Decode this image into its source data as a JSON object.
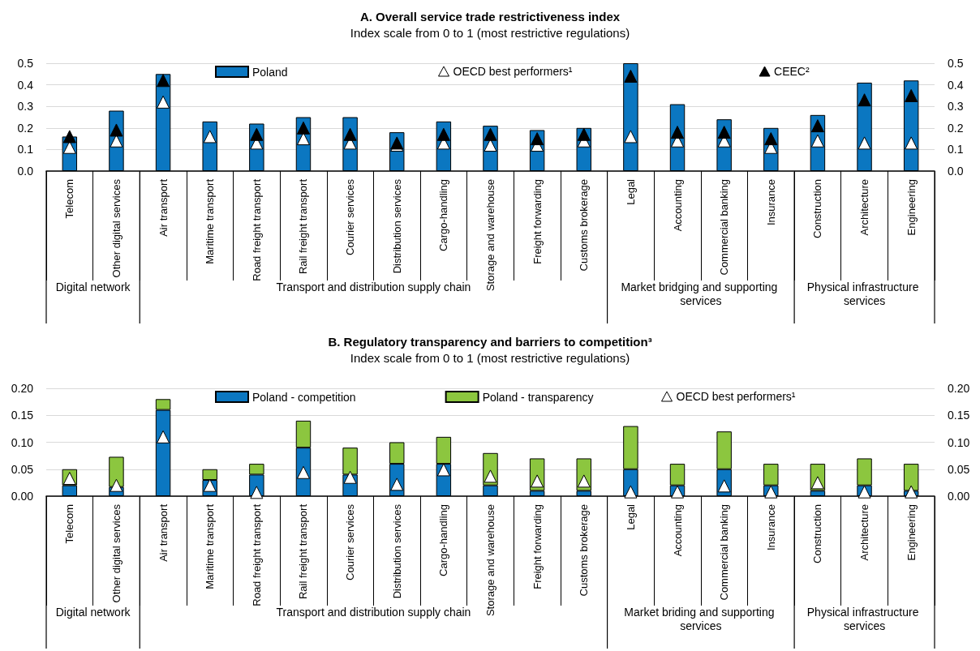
{
  "chart_data": [
    {
      "type": "bar",
      "title": "A. Overall service trade restrictiveness index",
      "subtitle": "Index scale from 0 to 1 (most restrictive regulations)",
      "categories": [
        "Telecom",
        "Other digital services",
        "Air transport",
        "Maritime transport",
        "Road freight transport",
        "Rail freight transport",
        "Courier services",
        "Distribution services",
        "Cargo-handling",
        "Storage and warehouse",
        "Freight forwarding",
        "Customs brokerage",
        "Legal",
        "Accounting",
        "Commercial banking",
        "Insurance",
        "Construction",
        "Architecture",
        "Engineering"
      ],
      "series": [
        {
          "name": "Poland",
          "type": "bar",
          "color": "#0b77c1",
          "values": [
            0.16,
            0.28,
            0.45,
            0.23,
            0.22,
            0.25,
            0.25,
            0.18,
            0.23,
            0.21,
            0.19,
            0.2,
            0.5,
            0.31,
            0.24,
            0.2,
            0.26,
            0.41,
            0.42
          ]
        },
        {
          "name": "OECD best performers¹",
          "type": "scatter",
          "marker": "triangle",
          "color": "#ffffff",
          "x": [
            "Telecom",
            "Other digital services",
            "Air transport",
            "Maritime transport",
            "Road freight transport",
            "Rail freight transport",
            "Courier services",
            "Distribution services",
            "Cargo-handling",
            "Storage and warehouse",
            "Freight forwarding",
            "Customs brokerage",
            "Legal",
            "Accounting",
            "Commercial banking",
            "Insurance",
            "Construction",
            "Architecture",
            "Engineering"
          ],
          "values": [
            0.11,
            0.14,
            0.32,
            0.16,
            0.13,
            0.15,
            0.13,
            0.12,
            0.13,
            0.12,
            0.12,
            0.14,
            0.16,
            0.14,
            0.14,
            0.11,
            0.14,
            0.13,
            0.13
          ]
        },
        {
          "name": "CEEC²",
          "type": "scatter",
          "marker": "triangle",
          "color": "#000000",
          "x": [
            "Telecom",
            "Other digital services",
            "Air transport",
            "Maritime transport",
            "Road freight transport",
            "Rail freight transport",
            "Courier services",
            "Distribution services",
            "Cargo-handling",
            "Storage and warehouse",
            "Freight forwarding",
            "Customs brokerage",
            "Legal",
            "Accounting",
            "Commercial banking",
            "Insurance",
            "Construction",
            "Architecture",
            "Engineering"
          ],
          "values": [
            0.16,
            0.19,
            0.42,
            null,
            0.17,
            0.2,
            0.17,
            0.13,
            0.17,
            0.17,
            0.15,
            0.17,
            0.44,
            0.18,
            0.18,
            0.15,
            0.21,
            0.33,
            0.35
          ]
        }
      ],
      "ylim": [
        0,
        0.5
      ],
      "yticks": [
        {
          "value": 0,
          "label": "0.0"
        },
        {
          "value": 0.1,
          "label": "0.1"
        },
        {
          "value": 0.2,
          "label": "0.2"
        },
        {
          "value": 0.3,
          "label": "0.3"
        },
        {
          "value": 0.4,
          "label": "0.4"
        },
        {
          "value": 0.5,
          "label": "0.5"
        }
      ],
      "y2lim": [
        0,
        0.5
      ],
      "y2ticks": [
        {
          "value": 0,
          "label": "0.0"
        },
        {
          "value": 0.1,
          "label": "0.1"
        },
        {
          "value": 0.2,
          "label": "0.2"
        },
        {
          "value": 0.3,
          "label": "0.3"
        },
        {
          "value": 0.4,
          "label": "0.4"
        },
        {
          "value": 0.5,
          "label": "0.5"
        }
      ],
      "grid": "y",
      "legend": "top",
      "annotations": [
        "Digital network",
        "Transport and distribution supply chain",
        "Market bridging and supporting services",
        "Physical infrastructure services"
      ]
    },
    {
      "type": "bar",
      "title": "B. Regulatory transparency and barriers to competition³",
      "subtitle": "Index scale from 0 to 1 (most restrictive regulations)",
      "categories": [
        "Telecom",
        "Other digital services",
        "Air transport",
        "Maritime transport",
        "Road freight transport",
        "Rail freight transport",
        "Courier services",
        "Distribution services",
        "Cargo-handling",
        "Storage and warehouse",
        "Freight forwarding",
        "Customs brokerage",
        "Legal",
        "Accounting",
        "Commercial banking",
        "Insurance",
        "Construction",
        "Architecture",
        "Engineering"
      ],
      "stacked": true,
      "series": [
        {
          "name": "Poland - competition",
          "type": "bar",
          "color": "#0b77c1",
          "values": [
            0.02,
            0.017,
            0.16,
            0.03,
            0.04,
            0.09,
            0.04,
            0.06,
            0.06,
            0.02,
            0.01,
            0.01,
            0.05,
            0.02,
            0.05,
            0.02,
            0.01,
            0.02,
            0.01
          ]
        },
        {
          "name": "Poland - transparency",
          "type": "bar",
          "color": "#8cc63f",
          "values": [
            0.03,
            0.056,
            0.02,
            0.02,
            0.02,
            0.05,
            0.05,
            0.04,
            0.05,
            0.06,
            0.06,
            0.06,
            0.08,
            0.04,
            0.07,
            0.04,
            0.05,
            0.05,
            0.05
          ]
        },
        {
          "name": "OECD best performers¹",
          "type": "scatter",
          "marker": "triangle",
          "color": "#ffffff",
          "x": [
            "Telecom",
            "Other digital services",
            "Air transport",
            "Maritime transport",
            "Road freight transport",
            "Rail freight transport",
            "Courier services",
            "Distribution services",
            "Cargo-handling",
            "Storage and warehouse",
            "Freight forwarding",
            "Customs brokerage",
            "Legal",
            "Accounting",
            "Commercial banking",
            "Insurance",
            "Construction",
            "Architecture",
            "Engineering"
          ],
          "values": [
            0.033,
            0.02,
            0.11,
            0.02,
            0.007,
            0.044,
            0.035,
            0.022,
            0.049,
            0.037,
            0.028,
            0.028,
            0.008,
            0.008,
            0.019,
            0.008,
            0.025,
            0.008,
            0.008
          ]
        }
      ],
      "ylim": [
        0,
        0.2
      ],
      "yticks": [
        {
          "value": 0,
          "label": "0.00"
        },
        {
          "value": 0.05,
          "label": "0.05"
        },
        {
          "value": 0.1,
          "label": "0.10"
        },
        {
          "value": 0.15,
          "label": "0.15"
        },
        {
          "value": 0.2,
          "label": "0.20"
        }
      ],
      "y2lim": [
        0,
        0.2
      ],
      "y2ticks": [
        {
          "value": 0,
          "label": "0.00"
        },
        {
          "value": 0.05,
          "label": "0.05"
        },
        {
          "value": 0.1,
          "label": "0.10"
        },
        {
          "value": 0.15,
          "label": "0.15"
        },
        {
          "value": 0.2,
          "label": "0.20"
        }
      ],
      "grid": "y",
      "legend": "top",
      "annotations": [
        "Digital network",
        "Transport and distribution supply chain",
        "Market briding and supporting services",
        "Physical infrastructure services"
      ]
    }
  ]
}
